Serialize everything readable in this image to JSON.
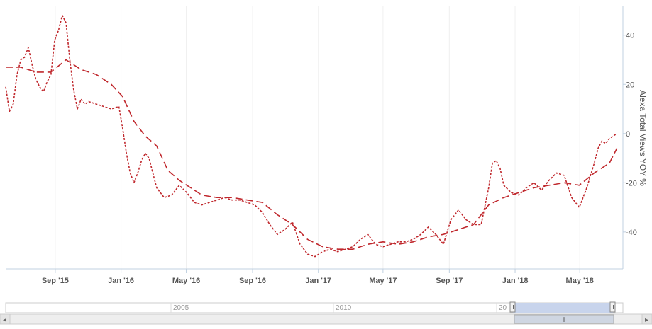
{
  "chart_data": {
    "type": "line",
    "title": "",
    "xlabel": "",
    "ylabel": "Alexa Total Views YOY %",
    "ylim": [
      -55,
      52
    ],
    "yticks": [
      40,
      20,
      0,
      -20,
      -40
    ],
    "x_ticks": [
      "Sep '15",
      "Jan '16",
      "May '16",
      "Sep '16",
      "Jan '17",
      "May '17",
      "Sep '17",
      "Jan '18",
      "May '18"
    ],
    "grid": "vertical",
    "legend": "none",
    "series": [
      {
        "style": "short-dash",
        "color": "#c0282d",
        "points": [
          [
            "2015-06-01",
            19
          ],
          [
            "2015-06-08",
            9
          ],
          [
            "2015-06-15",
            12
          ],
          [
            "2015-06-22",
            24
          ],
          [
            "2015-06-29",
            30
          ],
          [
            "2015-07-06",
            31
          ],
          [
            "2015-07-13",
            35
          ],
          [
            "2015-07-20",
            28
          ],
          [
            "2015-07-27",
            22
          ],
          [
            "2015-08-03",
            19
          ],
          [
            "2015-08-10",
            17
          ],
          [
            "2015-08-17",
            21
          ],
          [
            "2015-08-24",
            24
          ],
          [
            "2015-08-31",
            38
          ],
          [
            "2015-09-07",
            42
          ],
          [
            "2015-09-14",
            48
          ],
          [
            "2015-09-21",
            45
          ],
          [
            "2015-09-28",
            30
          ],
          [
            "2015-10-05",
            18
          ],
          [
            "2015-10-12",
            10
          ],
          [
            "2015-10-19",
            14
          ],
          [
            "2015-10-26",
            12
          ],
          [
            "2015-11-02",
            13
          ],
          [
            "2015-11-16",
            12
          ],
          [
            "2015-11-30",
            11
          ],
          [
            "2015-12-14",
            10
          ],
          [
            "2015-12-28",
            11
          ],
          [
            "2016-01-04",
            2
          ],
          [
            "2016-01-11",
            -8
          ],
          [
            "2016-01-18",
            -16
          ],
          [
            "2016-01-25",
            -20
          ],
          [
            "2016-02-01",
            -16
          ],
          [
            "2016-02-08",
            -11
          ],
          [
            "2016-02-15",
            -8
          ],
          [
            "2016-02-22",
            -10
          ],
          [
            "2016-02-29",
            -16
          ],
          [
            "2016-03-07",
            -22
          ],
          [
            "2016-03-21",
            -26
          ],
          [
            "2016-04-04",
            -25
          ],
          [
            "2016-04-18",
            -21
          ],
          [
            "2016-05-02",
            -24
          ],
          [
            "2016-05-16",
            -28
          ],
          [
            "2016-05-30",
            -29
          ],
          [
            "2016-06-13",
            -28
          ],
          [
            "2016-06-27",
            -27
          ],
          [
            "2016-07-11",
            -26
          ],
          [
            "2016-07-25",
            -27
          ],
          [
            "2016-08-08",
            -27
          ],
          [
            "2016-08-22",
            -28
          ],
          [
            "2016-09-05",
            -29
          ],
          [
            "2016-09-19",
            -32
          ],
          [
            "2016-10-03",
            -37
          ],
          [
            "2016-10-17",
            -41
          ],
          [
            "2016-10-31",
            -39
          ],
          [
            "2016-11-14",
            -36
          ],
          [
            "2016-11-28",
            -45
          ],
          [
            "2016-12-12",
            -49
          ],
          [
            "2016-12-26",
            -50
          ],
          [
            "2017-01-09",
            -48
          ],
          [
            "2017-01-23",
            -47
          ],
          [
            "2017-02-06",
            -48
          ],
          [
            "2017-02-20",
            -47
          ],
          [
            "2017-03-06",
            -46
          ],
          [
            "2017-03-20",
            -43
          ],
          [
            "2017-04-03",
            -41
          ],
          [
            "2017-04-17",
            -45
          ],
          [
            "2017-05-01",
            -46
          ],
          [
            "2017-05-15",
            -45
          ],
          [
            "2017-05-29",
            -44
          ],
          [
            "2017-06-12",
            -44
          ],
          [
            "2017-06-26",
            -43
          ],
          [
            "2017-07-10",
            -41
          ],
          [
            "2017-07-24",
            -38
          ],
          [
            "2017-08-07",
            -41
          ],
          [
            "2017-08-21",
            -45
          ],
          [
            "2017-09-04",
            -35
          ],
          [
            "2017-09-18",
            -31
          ],
          [
            "2017-10-02",
            -35
          ],
          [
            "2017-10-16",
            -37
          ],
          [
            "2017-10-30",
            -37
          ],
          [
            "2017-11-13",
            -22
          ],
          [
            "2017-11-20",
            -12
          ],
          [
            "2017-11-27",
            -11
          ],
          [
            "2017-12-04",
            -14
          ],
          [
            "2017-12-11",
            -21
          ],
          [
            "2017-12-25",
            -24
          ],
          [
            "2018-01-08",
            -25
          ],
          [
            "2018-01-22",
            -22
          ],
          [
            "2018-02-05",
            -20
          ],
          [
            "2018-02-19",
            -23
          ],
          [
            "2018-03-05",
            -19
          ],
          [
            "2018-03-19",
            -16
          ],
          [
            "2018-04-02",
            -17
          ],
          [
            "2018-04-16",
            -26
          ],
          [
            "2018-04-30",
            -30
          ],
          [
            "2018-05-14",
            -22
          ],
          [
            "2018-05-28",
            -12
          ],
          [
            "2018-06-04",
            -6
          ],
          [
            "2018-06-11",
            -3
          ],
          [
            "2018-06-18",
            -4
          ],
          [
            "2018-06-25",
            -2
          ],
          [
            "2018-07-02",
            -1
          ],
          [
            "2018-07-09",
            0
          ]
        ]
      },
      {
        "style": "long-dash",
        "color": "#c0282d",
        "points": [
          [
            "2015-06-01",
            27
          ],
          [
            "2015-06-29",
            27
          ],
          [
            "2015-07-27",
            25
          ],
          [
            "2015-08-24",
            25
          ],
          [
            "2015-09-21",
            30
          ],
          [
            "2015-10-19",
            26
          ],
          [
            "2015-11-16",
            24
          ],
          [
            "2015-12-14",
            20
          ],
          [
            "2016-01-04",
            15
          ],
          [
            "2016-01-25",
            5
          ],
          [
            "2016-02-15",
            -1
          ],
          [
            "2016-03-07",
            -5
          ],
          [
            "2016-03-28",
            -15
          ],
          [
            "2016-04-18",
            -19
          ],
          [
            "2016-05-02",
            -21
          ],
          [
            "2016-05-30",
            -25
          ],
          [
            "2016-06-27",
            -26
          ],
          [
            "2016-07-25",
            -26
          ],
          [
            "2016-08-22",
            -27
          ],
          [
            "2016-09-19",
            -28
          ],
          [
            "2016-10-17",
            -33
          ],
          [
            "2016-11-14",
            -37
          ],
          [
            "2016-12-12",
            -43
          ],
          [
            "2017-01-09",
            -46
          ],
          [
            "2017-02-06",
            -47
          ],
          [
            "2017-03-06",
            -47
          ],
          [
            "2017-04-03",
            -45
          ],
          [
            "2017-05-01",
            -44
          ],
          [
            "2017-05-29",
            -45
          ],
          [
            "2017-06-26",
            -44
          ],
          [
            "2017-07-24",
            -42
          ],
          [
            "2017-08-21",
            -41
          ],
          [
            "2017-09-18",
            -39
          ],
          [
            "2017-10-16",
            -37
          ],
          [
            "2017-11-13",
            -29
          ],
          [
            "2017-12-11",
            -26
          ],
          [
            "2018-01-08",
            -24
          ],
          [
            "2018-02-05",
            -22
          ],
          [
            "2018-03-05",
            -21
          ],
          [
            "2018-04-02",
            -20
          ],
          [
            "2018-04-30",
            -21
          ],
          [
            "2018-05-28",
            -16
          ],
          [
            "2018-06-25",
            -12
          ],
          [
            "2018-07-09",
            -6
          ]
        ]
      }
    ]
  },
  "navigator": {
    "labels": [
      "2005",
      "2010",
      "20"
    ],
    "scroll_left": "◂",
    "scroll_right": "▸",
    "scroll_grip": "⦀"
  }
}
